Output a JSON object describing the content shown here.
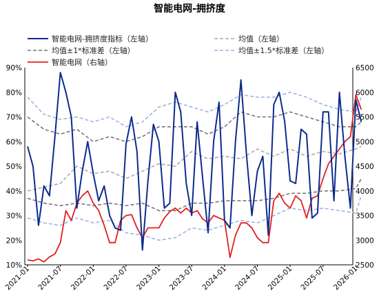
{
  "title": "智能电网-拥挤度",
  "chart_data": {
    "type": "line",
    "title": "智能电网-拥挤度",
    "x_ticks": [
      "2021-01",
      "2021-07",
      "2022-01",
      "2022-07",
      "2023-01",
      "2023-07",
      "2024-01",
      "2024-07",
      "2025-01",
      "2025-07",
      "2026-01"
    ],
    "x_range": [
      "2021-01",
      "2026-01"
    ],
    "y_left": {
      "range": [
        10,
        90
      ],
      "ticks": [
        "10%",
        "20%",
        "30%",
        "40%",
        "50%",
        "60%",
        "70%",
        "80%",
        "90%"
      ]
    },
    "y_right": {
      "range": [
        2500,
        6500
      ],
      "ticks": [
        "2500",
        "3000",
        "3500",
        "4000",
        "4500",
        "5000",
        "5500",
        "6000",
        "6500"
      ]
    },
    "legend": {
      "crowding": "智能电网-拥挤度指标（左轴）",
      "mean": "均值（左轴）",
      "band1": "均值±1*标准差（左轴）",
      "band15": "均值±1.5*标准差（左轴）",
      "index": "智能电网（右轴）"
    },
    "colors": {
      "crowding": "#0b2a8c",
      "mean": "#a9a9a9",
      "band1": "#777777",
      "band15": "#9db4e2",
      "index": "#e02020"
    },
    "series": [
      {
        "key": "crowding",
        "name": "智能电网-拥挤度指标（左轴）",
        "axis": "left",
        "points": [
          [
            "2021-01",
            58
          ],
          [
            "2021-02",
            50
          ],
          [
            "2021-03",
            26
          ],
          [
            "2021-04",
            42
          ],
          [
            "2021-05",
            38
          ],
          [
            "2021-06",
            62
          ],
          [
            "2021-07",
            88
          ],
          [
            "2021-08",
            80
          ],
          [
            "2021-09",
            70
          ],
          [
            "2021-10",
            33
          ],
          [
            "2021-11",
            48
          ],
          [
            "2021-12",
            60
          ],
          [
            "2022-01",
            47
          ],
          [
            "2022-02",
            36
          ],
          [
            "2022-03",
            42
          ],
          [
            "2022-04",
            30
          ],
          [
            "2022-05",
            25
          ],
          [
            "2022-06",
            24
          ],
          [
            "2022-07",
            59
          ],
          [
            "2022-08",
            70
          ],
          [
            "2022-09",
            56
          ],
          [
            "2022-10",
            16
          ],
          [
            "2022-11",
            44
          ],
          [
            "2022-12",
            67
          ],
          [
            "2023-01",
            60
          ],
          [
            "2023-02",
            33
          ],
          [
            "2023-03",
            35
          ],
          [
            "2023-04",
            80
          ],
          [
            "2023-05",
            72
          ],
          [
            "2023-06",
            43
          ],
          [
            "2023-07",
            30
          ],
          [
            "2023-08",
            68
          ],
          [
            "2023-09",
            45
          ],
          [
            "2023-10",
            23
          ],
          [
            "2023-11",
            60
          ],
          [
            "2023-12",
            76
          ],
          [
            "2024-01",
            28
          ],
          [
            "2024-02",
            25
          ],
          [
            "2024-03",
            60
          ],
          [
            "2024-04",
            85
          ],
          [
            "2024-05",
            55
          ],
          [
            "2024-06",
            30
          ],
          [
            "2024-07",
            48
          ],
          [
            "2024-08",
            54
          ],
          [
            "2024-09",
            22
          ],
          [
            "2024-10",
            75
          ],
          [
            "2024-11",
            80
          ],
          [
            "2024-12",
            68
          ],
          [
            "2025-01",
            44
          ],
          [
            "2025-02",
            43
          ],
          [
            "2025-03",
            65
          ],
          [
            "2025-04",
            63
          ],
          [
            "2025-05",
            29
          ],
          [
            "2025-06",
            31
          ],
          [
            "2025-07",
            72
          ],
          [
            "2025-08",
            72
          ],
          [
            "2025-09",
            36
          ],
          [
            "2025-10",
            80
          ],
          [
            "2025-11",
            54
          ],
          [
            "2025-12",
            33
          ],
          [
            "2026-01",
            77
          ],
          [
            "2026-02",
            68
          ]
        ]
      },
      {
        "key": "mean",
        "name": "均值（左轴）",
        "axis": "left",
        "points": [
          [
            "2021-01",
            40
          ],
          [
            "2021-07",
            43
          ],
          [
            "2021-10",
            50
          ],
          [
            "2022-01",
            47
          ],
          [
            "2022-04",
            48
          ],
          [
            "2022-07",
            45
          ],
          [
            "2022-10",
            48
          ],
          [
            "2023-01",
            51
          ],
          [
            "2023-04",
            50
          ],
          [
            "2023-07",
            56
          ],
          [
            "2023-10",
            53
          ],
          [
            "2024-01",
            54
          ],
          [
            "2024-04",
            53
          ],
          [
            "2024-07",
            57
          ],
          [
            "2024-10",
            54
          ],
          [
            "2025-01",
            57
          ],
          [
            "2025-04",
            54
          ],
          [
            "2025-07",
            56
          ],
          [
            "2025-10",
            55
          ],
          [
            "2026-01",
            57
          ],
          [
            "2026-02",
            58
          ]
        ]
      },
      {
        "key": "band1",
        "name": "均值±1*标准差（左轴）",
        "axis": "left",
        "points": [
          [
            "2021-01",
            70
          ],
          [
            "2021-04",
            65
          ],
          [
            "2021-07",
            63
          ],
          [
            "2021-10",
            65
          ],
          [
            "2022-01",
            60
          ],
          [
            "2022-04",
            62
          ],
          [
            "2022-07",
            60
          ],
          [
            "2022-10",
            62
          ],
          [
            "2023-01",
            66
          ],
          [
            "2023-04",
            66
          ],
          [
            "2023-07",
            66
          ],
          [
            "2023-10",
            63
          ],
          [
            "2024-01",
            66
          ],
          [
            "2024-04",
            72
          ],
          [
            "2024-07",
            70
          ],
          [
            "2024-10",
            70
          ],
          [
            "2025-01",
            72
          ],
          [
            "2025-04",
            70
          ],
          [
            "2025-07",
            68
          ],
          [
            "2025-10",
            66
          ],
          [
            "2026-01",
            66
          ],
          [
            "2026-02",
            68
          ]
        ]
      },
      {
        "key": "band1",
        "name": "均值±1*标准差（左轴）",
        "axis": "left",
        "points": [
          [
            "2021-01",
            37
          ],
          [
            "2021-04",
            35
          ],
          [
            "2021-07",
            34
          ],
          [
            "2021-10",
            35
          ],
          [
            "2022-01",
            34
          ],
          [
            "2022-04",
            35
          ],
          [
            "2022-07",
            34
          ],
          [
            "2022-10",
            35
          ],
          [
            "2023-01",
            32
          ],
          [
            "2023-04",
            32
          ],
          [
            "2023-07",
            35
          ],
          [
            "2023-10",
            35
          ],
          [
            "2024-01",
            36
          ],
          [
            "2024-04",
            36
          ],
          [
            "2024-07",
            36
          ],
          [
            "2024-10",
            37
          ],
          [
            "2025-01",
            39
          ],
          [
            "2025-04",
            39
          ],
          [
            "2025-07",
            40
          ],
          [
            "2025-10",
            40
          ],
          [
            "2026-01",
            41
          ],
          [
            "2026-02",
            45
          ]
        ]
      },
      {
        "key": "band15",
        "name": "均值±1.5*标准差（左轴）",
        "axis": "left",
        "points": [
          [
            "2021-01",
            78
          ],
          [
            "2021-04",
            71
          ],
          [
            "2021-07",
            69
          ],
          [
            "2021-10",
            70
          ],
          [
            "2022-01",
            68
          ],
          [
            "2022-04",
            70
          ],
          [
            "2022-07",
            66
          ],
          [
            "2022-10",
            68
          ],
          [
            "2023-01",
            74
          ],
          [
            "2023-04",
            76
          ],
          [
            "2023-07",
            74
          ],
          [
            "2023-10",
            72
          ],
          [
            "2024-01",
            75
          ],
          [
            "2024-04",
            79
          ],
          [
            "2024-07",
            78
          ],
          [
            "2024-10",
            78
          ],
          [
            "2025-01",
            80
          ],
          [
            "2025-04",
            78
          ],
          [
            "2025-07",
            75
          ],
          [
            "2025-10",
            73
          ],
          [
            "2026-01",
            72
          ],
          [
            "2026-02",
            78
          ]
        ]
      },
      {
        "key": "band15",
        "name": "均值±1.5*标准差（左轴）",
        "axis": "left",
        "points": [
          [
            "2021-01",
            29
          ],
          [
            "2021-04",
            27
          ],
          [
            "2021-07",
            26
          ],
          [
            "2021-10",
            29
          ],
          [
            "2022-01",
            27
          ],
          [
            "2022-04",
            28
          ],
          [
            "2022-07",
            23
          ],
          [
            "2022-10",
            22
          ],
          [
            "2023-01",
            20
          ],
          [
            "2023-04",
            21
          ],
          [
            "2023-07",
            25
          ],
          [
            "2023-10",
            24
          ],
          [
            "2024-01",
            26
          ],
          [
            "2024-04",
            28
          ],
          [
            "2024-07",
            27
          ],
          [
            "2024-10",
            30
          ],
          [
            "2025-01",
            33
          ],
          [
            "2025-04",
            32
          ],
          [
            "2025-07",
            33
          ],
          [
            "2025-10",
            32
          ],
          [
            "2026-01",
            31
          ],
          [
            "2026-02",
            38
          ]
        ]
      },
      {
        "key": "index",
        "name": "智能电网（右轴）",
        "axis": "right",
        "points": [
          [
            "2021-01",
            2600
          ],
          [
            "2021-02",
            2580
          ],
          [
            "2021-03",
            2620
          ],
          [
            "2021-04",
            2560
          ],
          [
            "2021-05",
            2660
          ],
          [
            "2021-06",
            2720
          ],
          [
            "2021-07",
            2950
          ],
          [
            "2021-08",
            3600
          ],
          [
            "2021-09",
            3400
          ],
          [
            "2021-10",
            3750
          ],
          [
            "2021-11",
            3900
          ],
          [
            "2021-12",
            4000
          ],
          [
            "2022-01",
            3750
          ],
          [
            "2022-02",
            3600
          ],
          [
            "2022-03",
            3300
          ],
          [
            "2022-04",
            2950
          ],
          [
            "2022-05",
            2950
          ],
          [
            "2022-06",
            3400
          ],
          [
            "2022-07",
            3500
          ],
          [
            "2022-08",
            3520
          ],
          [
            "2022-09",
            3250
          ],
          [
            "2022-10",
            3050
          ],
          [
            "2022-11",
            3250
          ],
          [
            "2022-12",
            3250
          ],
          [
            "2023-01",
            3250
          ],
          [
            "2023-02",
            3450
          ],
          [
            "2023-03",
            3580
          ],
          [
            "2023-04",
            3650
          ],
          [
            "2023-05",
            3550
          ],
          [
            "2023-06",
            3650
          ],
          [
            "2023-07",
            3550
          ],
          [
            "2023-08",
            3600
          ],
          [
            "2023-09",
            3430
          ],
          [
            "2023-10",
            3350
          ],
          [
            "2023-11",
            3500
          ],
          [
            "2023-12",
            3450
          ],
          [
            "2024-01",
            3400
          ],
          [
            "2024-02",
            2650
          ],
          [
            "2024-03",
            3100
          ],
          [
            "2024-04",
            3350
          ],
          [
            "2024-05",
            3350
          ],
          [
            "2024-06",
            3250
          ],
          [
            "2024-07",
            3050
          ],
          [
            "2024-08",
            2950
          ],
          [
            "2024-09",
            2950
          ],
          [
            "2024-10",
            3800
          ],
          [
            "2024-11",
            3950
          ],
          [
            "2024-12",
            3750
          ],
          [
            "2025-01",
            3650
          ],
          [
            "2025-02",
            3900
          ],
          [
            "2025-03",
            3800
          ],
          [
            "2025-04",
            3450
          ],
          [
            "2025-05",
            3850
          ],
          [
            "2025-06",
            3900
          ],
          [
            "2025-07",
            4250
          ],
          [
            "2025-08",
            4550
          ],
          [
            "2025-09",
            4700
          ],
          [
            "2025-10",
            4850
          ],
          [
            "2025-11",
            5000
          ],
          [
            "2025-12",
            5100
          ],
          [
            "2026-01",
            5950
          ],
          [
            "2026-02",
            5650
          ]
        ]
      }
    ]
  }
}
